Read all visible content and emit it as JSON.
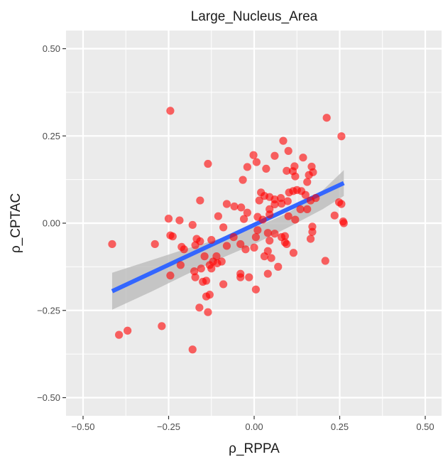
{
  "chart_data": {
    "type": "scatter",
    "title": "Large_Nucleus_Area",
    "xlabel": "ρ_RPPA",
    "ylabel": "ρ_CPTAC",
    "xlim": [
      -0.5,
      0.5
    ],
    "ylim": [
      -0.5,
      0.5
    ],
    "x_ticks": [
      -0.5,
      -0.25,
      0.0,
      0.25,
      0.5
    ],
    "x_tick_labels": [
      "−0.50",
      "−0.25",
      "0.00",
      "0.25",
      "0.50"
    ],
    "y_ticks": [
      -0.5,
      -0.25,
      0.0,
      0.25,
      0.5
    ],
    "y_tick_labels": [
      "−0.50",
      "−0.25",
      "0.00",
      "0.25",
      "0.50"
    ],
    "grid": true,
    "colors": {
      "panel": "#ebebeb",
      "grid": "#ffffff",
      "point": "#ff0000",
      "fit_line": "#3366ff",
      "ribbon": "#b8b8b8"
    },
    "point_opacity": 0.6,
    "points": [
      [
        -0.245,
        0.322
      ],
      [
        0.212,
        0.302
      ],
      [
        0.255,
        0.249
      ],
      [
        0.085,
        0.236
      ],
      [
        0.143,
        0.188
      ],
      [
        0.1,
        0.207
      ],
      [
        0.06,
        0.193
      ],
      [
        -0.002,
        0.195
      ],
      [
        0.007,
        0.175
      ],
      [
        -0.02,
        0.161
      ],
      [
        0.035,
        0.156
      ],
      [
        -0.135,
        0.17
      ],
      [
        0.118,
        0.163
      ],
      [
        0.168,
        0.162
      ],
      [
        0.172,
        0.146
      ],
      [
        0.095,
        0.15
      ],
      [
        0.113,
        0.149
      ],
      [
        0.12,
        0.134
      ],
      [
        0.16,
        0.138
      ],
      [
        0.155,
        0.118
      ],
      [
        -0.033,
        0.124
      ],
      [
        0.045,
        0.075
      ],
      [
        0.06,
        0.068
      ],
      [
        0.078,
        0.072
      ],
      [
        0.02,
        0.088
      ],
      [
        0.03,
        0.078
      ],
      [
        0.102,
        0.088
      ],
      [
        0.114,
        0.092
      ],
      [
        0.125,
        0.095
      ],
      [
        0.138,
        0.092
      ],
      [
        0.15,
        0.081
      ],
      [
        0.165,
        0.065
      ],
      [
        0.18,
        0.072
      ],
      [
        0.098,
        0.063
      ],
      [
        0.08,
        0.056
      ],
      [
        0.06,
        0.054
      ],
      [
        0.045,
        0.04
      ],
      [
        0.015,
        0.065
      ],
      [
        -0.038,
        0.045
      ],
      [
        -0.058,
        0.048
      ],
      [
        -0.08,
        0.055
      ],
      [
        -0.158,
        0.065
      ],
      [
        0.248,
        0.06
      ],
      [
        0.255,
        0.055
      ],
      [
        0.235,
        0.022
      ],
      [
        0.26,
        0.005
      ],
      [
        0.262,
        0.0
      ],
      [
        -0.25,
        0.013
      ],
      [
        -0.218,
        0.008
      ],
      [
        -0.18,
        -0.005
      ],
      [
        -0.105,
        0.02
      ],
      [
        -0.09,
        -0.012
      ],
      [
        -0.02,
        0.03
      ],
      [
        -0.03,
        0.012
      ],
      [
        0.01,
        0.018
      ],
      [
        0.025,
        0.01
      ],
      [
        0.045,
        0.025
      ],
      [
        0.1,
        0.02
      ],
      [
        0.12,
        0.01
      ],
      [
        0.155,
        0.04
      ],
      [
        0.17,
        -0.01
      ],
      [
        0.17,
        -0.025
      ],
      [
        0.165,
        -0.045
      ],
      [
        0.135,
        0.04
      ],
      [
        -0.415,
        -0.06
      ],
      [
        -0.29,
        -0.06
      ],
      [
        -0.245,
        -0.035
      ],
      [
        -0.238,
        -0.038
      ],
      [
        -0.212,
        -0.068
      ],
      [
        -0.205,
        -0.075
      ],
      [
        -0.168,
        -0.045
      ],
      [
        -0.172,
        -0.063
      ],
      [
        -0.158,
        -0.052
      ],
      [
        -0.125,
        -0.048
      ],
      [
        -0.08,
        -0.065
      ],
      [
        -0.06,
        -0.04
      ],
      [
        -0.04,
        -0.06
      ],
      [
        -0.025,
        -0.075
      ],
      [
        0.0,
        -0.07
      ],
      [
        0.005,
        -0.04
      ],
      [
        0.01,
        -0.02
      ],
      [
        0.04,
        -0.028
      ],
      [
        0.045,
        -0.05
      ],
      [
        0.06,
        -0.03
      ],
      [
        0.08,
        -0.04
      ],
      [
        0.09,
        -0.055
      ],
      [
        0.09,
        -0.037
      ],
      [
        0.095,
        -0.06
      ],
      [
        0.115,
        -0.085
      ],
      [
        -0.11,
        -0.095
      ],
      [
        -0.12,
        -0.11
      ],
      [
        -0.13,
        -0.12
      ],
      [
        -0.108,
        -0.115
      ],
      [
        -0.095,
        -0.11
      ],
      [
        -0.145,
        -0.095
      ],
      [
        -0.155,
        -0.13
      ],
      [
        -0.175,
        -0.138
      ],
      [
        -0.125,
        -0.13
      ],
      [
        -0.14,
        -0.165
      ],
      [
        -0.15,
        -0.168
      ],
      [
        -0.172,
        -0.155
      ],
      [
        -0.09,
        -0.175
      ],
      [
        -0.04,
        -0.145
      ],
      [
        -0.04,
        -0.155
      ],
      [
        0.04,
        -0.145
      ],
      [
        0.04,
        -0.08
      ],
      [
        0.05,
        -0.1
      ],
      [
        0.03,
        -0.095
      ],
      [
        0.07,
        -0.125
      ],
      [
        0.005,
        -0.19
      ],
      [
        -0.015,
        -0.155
      ],
      [
        -0.13,
        -0.205
      ],
      [
        -0.14,
        -0.21
      ],
      [
        -0.16,
        -0.242
      ],
      [
        -0.135,
        -0.255
      ],
      [
        -0.245,
        -0.15
      ],
      [
        -0.215,
        -0.12
      ],
      [
        -0.27,
        -0.295
      ],
      [
        -0.37,
        -0.308
      ],
      [
        -0.395,
        -0.32
      ],
      [
        -0.18,
        -0.362
      ],
      [
        0.208,
        -0.108
      ]
    ],
    "fit_line": {
      "x": [
        -0.415,
        0.262
      ],
      "y": [
        -0.195,
        0.115
      ]
    },
    "confidence_band": {
      "x": [
        -0.415,
        -0.3,
        -0.2,
        -0.1,
        0.0,
        0.05,
        0.1,
        0.2,
        0.262
      ],
      "lower": [
        -0.248,
        -0.196,
        -0.148,
        -0.102,
        -0.06,
        -0.036,
        -0.012,
        0.04,
        0.078
      ],
      "upper": [
        -0.142,
        -0.106,
        -0.074,
        -0.044,
        -0.012,
        0.008,
        0.03,
        0.094,
        0.152
      ]
    }
  }
}
